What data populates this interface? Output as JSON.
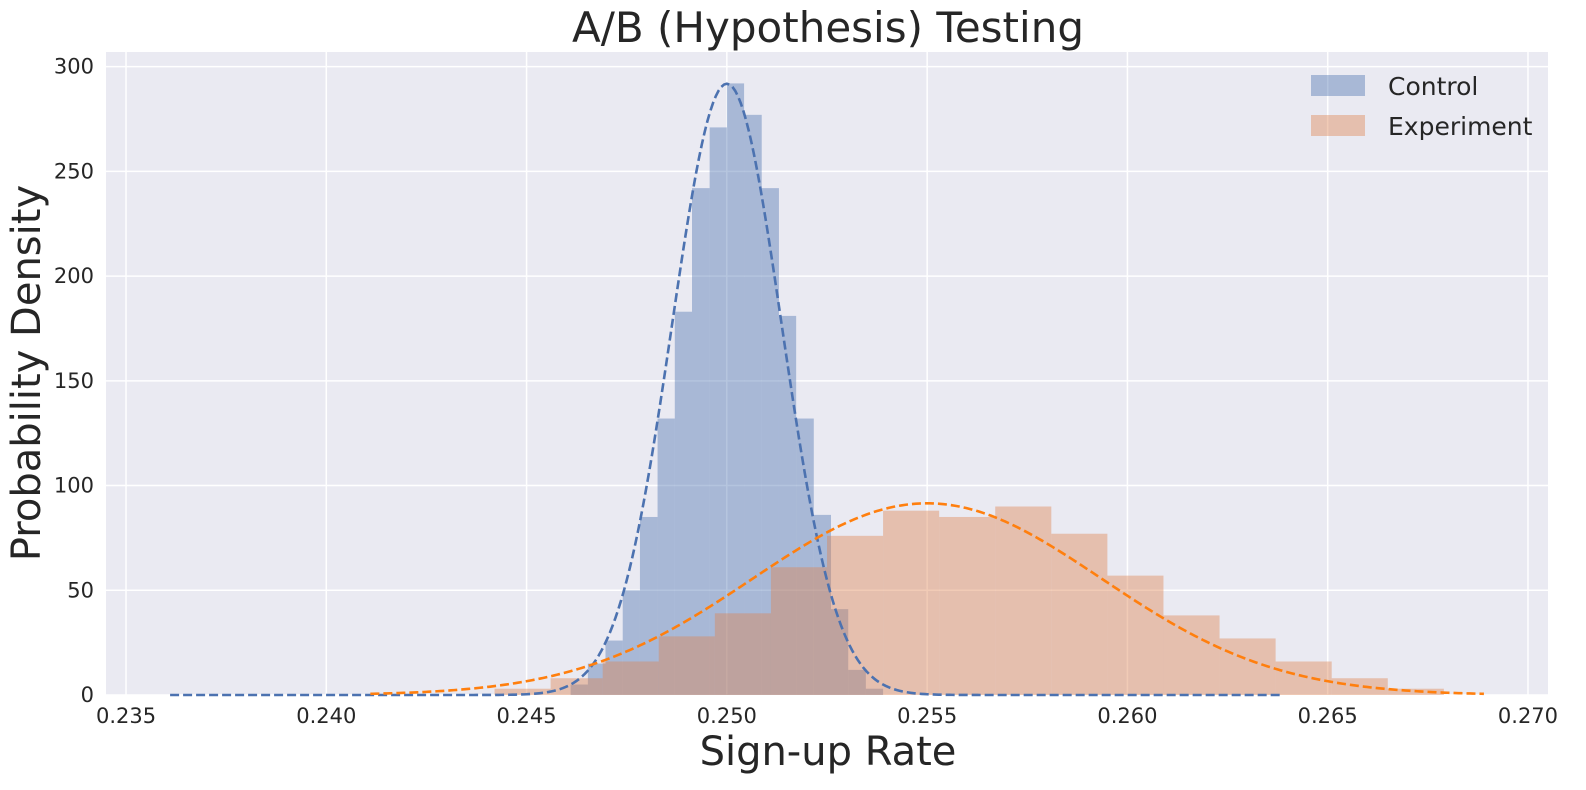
{
  "chart_data": {
    "type": "bar",
    "title": "A/B (Hypothesis) Testing",
    "xlabel": "Sign-up Rate",
    "ylabel": "Probability Density",
    "xlim": [
      0.2345,
      0.2705
    ],
    "ylim": [
      0,
      307
    ],
    "xticks": [
      "0.235",
      "0.240",
      "0.245",
      "0.250",
      "0.255",
      "0.260",
      "0.265",
      "0.270"
    ],
    "yticks": [
      "0",
      "50",
      "100",
      "150",
      "200",
      "250",
      "300"
    ],
    "grid": true,
    "legend": "top-right",
    "series": [
      {
        "name": "Control",
        "kind": "histogram",
        "color": "#4c72b0",
        "bin_edges": [
          0.2461,
          0.24653,
          0.24697,
          0.2474,
          0.24783,
          0.24827,
          0.2487,
          0.24913,
          0.24957,
          0.25,
          0.25043,
          0.25087,
          0.2513,
          0.25173,
          0.25217,
          0.2526,
          0.25303,
          0.25347,
          0.2539
        ],
        "values": [
          5,
          15,
          26,
          50,
          85,
          132,
          183,
          242,
          271,
          292,
          277,
          242,
          181,
          132,
          86,
          41,
          12,
          3
        ]
      },
      {
        "name": "Experiment",
        "kind": "histogram",
        "color": "#dd8452",
        "bin_edges": [
          0.2442,
          0.2456,
          0.2469,
          0.2483,
          0.2497,
          0.2511,
          0.2525,
          0.2539,
          0.2553,
          0.2567,
          0.2581,
          0.2595,
          0.2609,
          0.2623,
          0.2637,
          0.2651,
          0.2665,
          0.2679
        ],
        "values": [
          3,
          8,
          16,
          28,
          39,
          61,
          76,
          88,
          85,
          90,
          77,
          57,
          38,
          27,
          16,
          8,
          3
        ]
      },
      {
        "name": "Control fit",
        "kind": "normal-curve",
        "color": "#4c72b0",
        "style": "dashed",
        "mean": 0.25,
        "std": 0.001367,
        "x_range": [
          0.2361,
          0.2639
        ]
      },
      {
        "name": "Experiment fit",
        "kind": "normal-curve",
        "color": "#ff7f0e",
        "style": "dashed",
        "mean": 0.255,
        "std": 0.004359,
        "x_range": [
          0.2411,
          0.2689
        ]
      }
    ],
    "background": "#eaeaf2",
    "grid_color": "#ffffff"
  }
}
